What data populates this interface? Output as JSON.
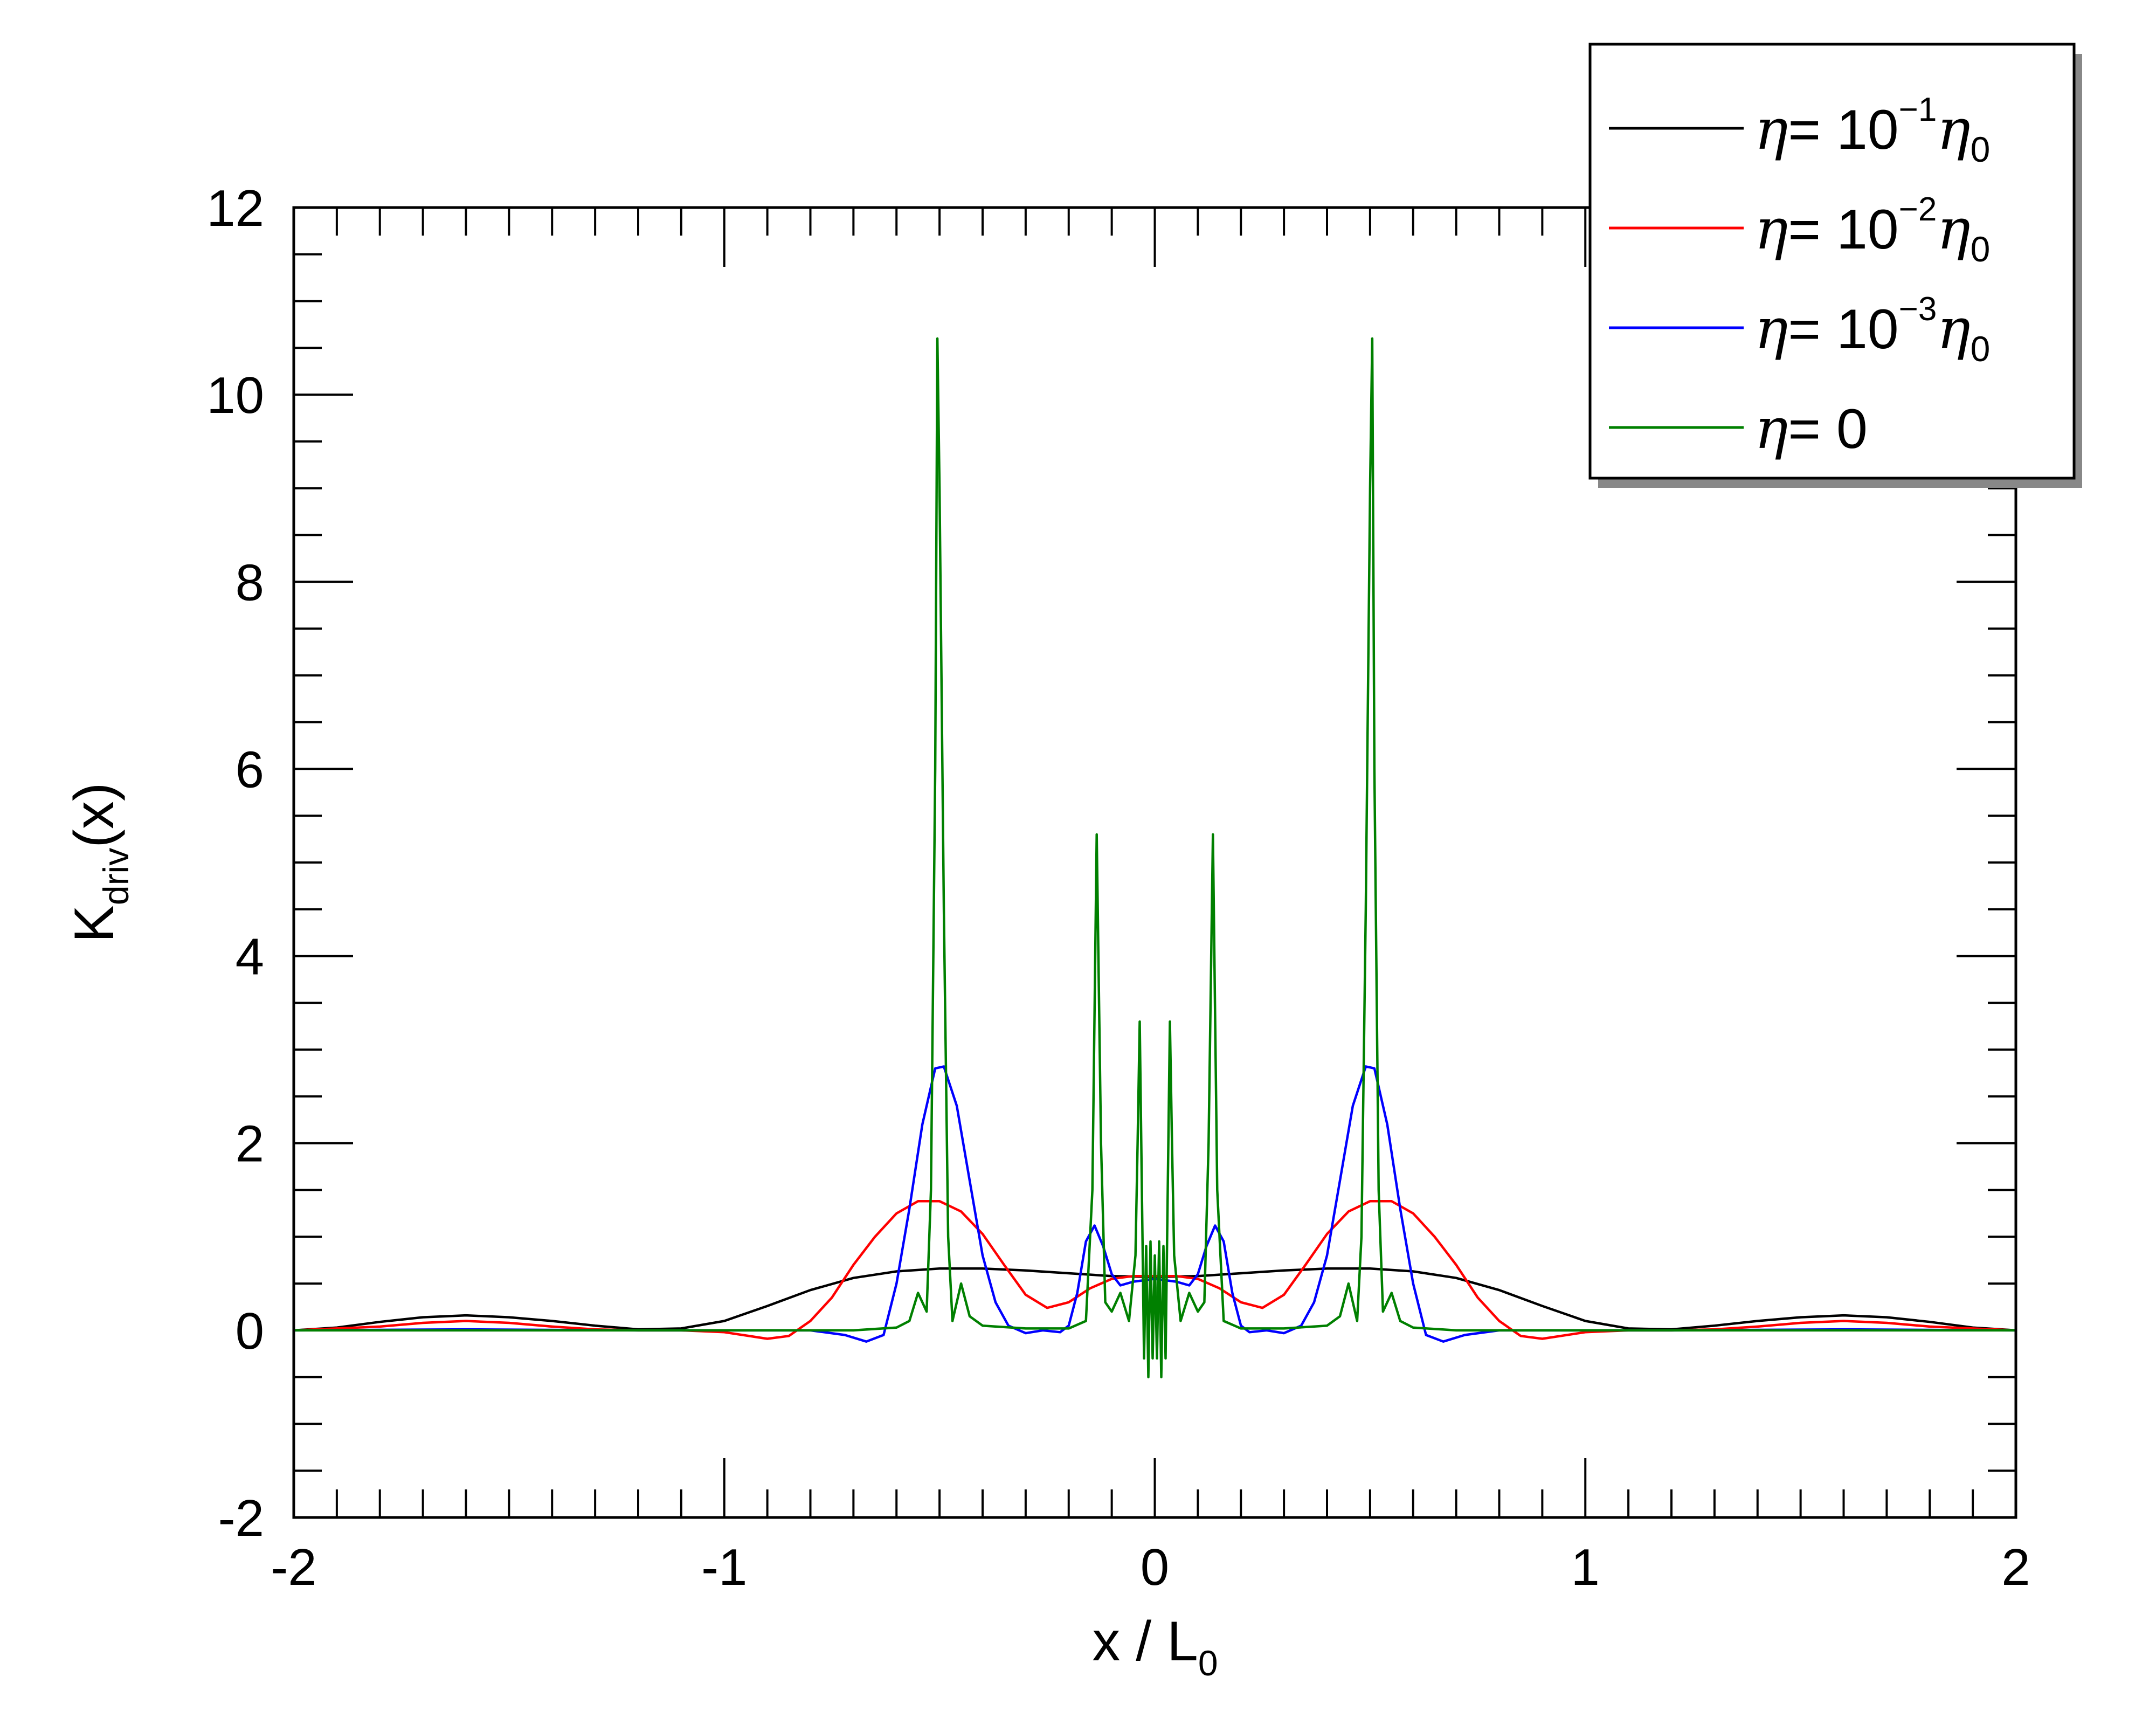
{
  "chart_data": {
    "type": "line",
    "xlabel": {
      "main": "x / L",
      "sub": "0"
    },
    "ylabel": {
      "main": "K",
      "sub": "driv",
      "tail": "(x)"
    },
    "xlim": [
      -2,
      2
    ],
    "ylim": [
      -2,
      12
    ],
    "x_ticks": [
      "-2",
      "-1",
      "0",
      "1",
      "2"
    ],
    "x_tick_values": [
      -2,
      -1,
      0,
      1,
      2
    ],
    "y_ticks": [
      "-2",
      "0",
      "2",
      "4",
      "6",
      "8",
      "10",
      "12"
    ],
    "y_tick_values": [
      -2,
      0,
      2,
      4,
      6,
      8,
      10,
      12
    ],
    "grid": false,
    "legend_position": "top-right",
    "series": [
      {
        "name": "η = 10⁻¹η₀",
        "legend": {
          "eta": "η",
          "eq": "= 10",
          "exp": "−1",
          "tail_eta": "η",
          "tail_sub": "0"
        },
        "color": "#000000",
        "points": [
          [
            -2,
            0
          ],
          [
            -1.9,
            0.03
          ],
          [
            -1.8,
            0.09
          ],
          [
            -1.7,
            0.14
          ],
          [
            -1.6,
            0.16
          ],
          [
            -1.5,
            0.14
          ],
          [
            -1.4,
            0.1
          ],
          [
            -1.3,
            0.05
          ],
          [
            -1.2,
            0.01
          ],
          [
            -1.1,
            0.02
          ],
          [
            -1.0,
            0.1
          ],
          [
            -0.9,
            0.26
          ],
          [
            -0.8,
            0.43
          ],
          [
            -0.7,
            0.56
          ],
          [
            -0.6,
            0.63
          ],
          [
            -0.5,
            0.66
          ],
          [
            -0.4,
            0.66
          ],
          [
            -0.3,
            0.64
          ],
          [
            -0.2,
            0.61
          ],
          [
            -0.1,
            0.58
          ],
          [
            0,
            0.57
          ],
          [
            0.1,
            0.58
          ],
          [
            0.2,
            0.61
          ],
          [
            0.3,
            0.64
          ],
          [
            0.4,
            0.66
          ],
          [
            0.5,
            0.66
          ],
          [
            0.6,
            0.63
          ],
          [
            0.7,
            0.56
          ],
          [
            0.8,
            0.43
          ],
          [
            0.9,
            0.26
          ],
          [
            1.0,
            0.1
          ],
          [
            1.1,
            0.02
          ],
          [
            1.2,
            0.01
          ],
          [
            1.3,
            0.05
          ],
          [
            1.4,
            0.1
          ],
          [
            1.5,
            0.14
          ],
          [
            1.6,
            0.16
          ],
          [
            1.7,
            0.14
          ],
          [
            1.8,
            0.09
          ],
          [
            1.9,
            0.03
          ],
          [
            2,
            0
          ]
        ]
      },
      {
        "name": "η = 10⁻²η₀",
        "legend": {
          "eta": "η",
          "eq": "= 10",
          "exp": "−2",
          "tail_eta": "η",
          "tail_sub": "0"
        },
        "color": "#ff0000",
        "points": [
          [
            -2,
            0
          ],
          [
            -1.8,
            0.04
          ],
          [
            -1.7,
            0.08
          ],
          [
            -1.6,
            0.1
          ],
          [
            -1.5,
            0.08
          ],
          [
            -1.4,
            0.04
          ],
          [
            -1.3,
            0.01
          ],
          [
            -1.2,
            0
          ],
          [
            -1.1,
            0
          ],
          [
            -1.0,
            -0.02
          ],
          [
            -0.9,
            -0.09
          ],
          [
            -0.85,
            -0.06
          ],
          [
            -0.8,
            0.1
          ],
          [
            -0.75,
            0.35
          ],
          [
            -0.7,
            0.7
          ],
          [
            -0.65,
            1.0
          ],
          [
            -0.6,
            1.25
          ],
          [
            -0.55,
            1.38
          ],
          [
            -0.5,
            1.38
          ],
          [
            -0.45,
            1.27
          ],
          [
            -0.4,
            1.03
          ],
          [
            -0.35,
            0.7
          ],
          [
            -0.3,
            0.38
          ],
          [
            -0.25,
            0.24
          ],
          [
            -0.2,
            0.3
          ],
          [
            -0.15,
            0.45
          ],
          [
            -0.1,
            0.55
          ],
          [
            -0.05,
            0.58
          ],
          [
            0,
            0.58
          ],
          [
            0.05,
            0.58
          ],
          [
            0.1,
            0.55
          ],
          [
            0.15,
            0.45
          ],
          [
            0.2,
            0.3
          ],
          [
            0.25,
            0.24
          ],
          [
            0.3,
            0.38
          ],
          [
            0.35,
            0.7
          ],
          [
            0.4,
            1.03
          ],
          [
            0.45,
            1.27
          ],
          [
            0.5,
            1.38
          ],
          [
            0.55,
            1.38
          ],
          [
            0.6,
            1.25
          ],
          [
            0.65,
            1.0
          ],
          [
            0.7,
            0.7
          ],
          [
            0.75,
            0.35
          ],
          [
            0.8,
            0.1
          ],
          [
            0.85,
            -0.06
          ],
          [
            0.9,
            -0.09
          ],
          [
            1.0,
            -0.02
          ],
          [
            1.1,
            0
          ],
          [
            1.2,
            0
          ],
          [
            1.3,
            0.01
          ],
          [
            1.4,
            0.04
          ],
          [
            1.5,
            0.08
          ],
          [
            1.6,
            0.1
          ],
          [
            1.7,
            0.08
          ],
          [
            1.8,
            0.04
          ],
          [
            2,
            0
          ]
        ]
      },
      {
        "name": "η = 10⁻³η₀",
        "legend": {
          "eta": "η",
          "eq": "= 10",
          "exp": "−3",
          "tail_eta": "η",
          "tail_sub": "0"
        },
        "color": "#0000ff",
        "points": [
          [
            -2,
            0
          ],
          [
            -1.6,
            0.01
          ],
          [
            -1.2,
            0
          ],
          [
            -0.8,
            0
          ],
          [
            -0.72,
            -0.05
          ],
          [
            -0.67,
            -0.12
          ],
          [
            -0.63,
            -0.05
          ],
          [
            -0.6,
            0.5
          ],
          [
            -0.57,
            1.3
          ],
          [
            -0.54,
            2.2
          ],
          [
            -0.51,
            2.8
          ],
          [
            -0.49,
            2.82
          ],
          [
            -0.46,
            2.4
          ],
          [
            -0.43,
            1.6
          ],
          [
            -0.4,
            0.8
          ],
          [
            -0.37,
            0.3
          ],
          [
            -0.34,
            0.05
          ],
          [
            -0.3,
            -0.03
          ],
          [
            -0.26,
            0.0
          ],
          [
            -0.22,
            -0.02
          ],
          [
            -0.2,
            0.05
          ],
          [
            -0.18,
            0.4
          ],
          [
            -0.16,
            0.95
          ],
          [
            -0.14,
            1.12
          ],
          [
            -0.12,
            0.9
          ],
          [
            -0.1,
            0.6
          ],
          [
            -0.08,
            0.48
          ],
          [
            -0.05,
            0.52
          ],
          [
            0,
            0.55
          ],
          [
            0.05,
            0.52
          ],
          [
            0.08,
            0.48
          ],
          [
            0.1,
            0.6
          ],
          [
            0.12,
            0.9
          ],
          [
            0.14,
            1.12
          ],
          [
            0.16,
            0.95
          ],
          [
            0.18,
            0.4
          ],
          [
            0.2,
            0.05
          ],
          [
            0.22,
            -0.02
          ],
          [
            0.26,
            0.0
          ],
          [
            0.3,
            -0.03
          ],
          [
            0.34,
            0.05
          ],
          [
            0.37,
            0.3
          ],
          [
            0.4,
            0.8
          ],
          [
            0.43,
            1.6
          ],
          [
            0.46,
            2.4
          ],
          [
            0.49,
            2.82
          ],
          [
            0.51,
            2.8
          ],
          [
            0.54,
            2.2
          ],
          [
            0.57,
            1.3
          ],
          [
            0.6,
            0.5
          ],
          [
            0.63,
            -0.05
          ],
          [
            0.67,
            -0.12
          ],
          [
            0.72,
            -0.05
          ],
          [
            0.8,
            0
          ],
          [
            1.2,
            0
          ],
          [
            1.6,
            0.01
          ],
          [
            2,
            0
          ]
        ]
      },
      {
        "name": "η = 0",
        "legend": {
          "eta": "η",
          "eq": "= 0",
          "exp": "",
          "tail_eta": "",
          "tail_sub": ""
        },
        "color": "#008000",
        "points": [
          [
            -2,
            0
          ],
          [
            -0.7,
            0
          ],
          [
            -0.6,
            0.03
          ],
          [
            -0.57,
            0.1
          ],
          [
            -0.55,
            0.4
          ],
          [
            -0.53,
            0.2
          ],
          [
            -0.52,
            1.5
          ],
          [
            -0.51,
            6
          ],
          [
            -0.505,
            10.6
          ],
          [
            -0.5,
            9.0
          ],
          [
            -0.49,
            4.5
          ],
          [
            -0.48,
            1.0
          ],
          [
            -0.47,
            0.1
          ],
          [
            -0.45,
            0.5
          ],
          [
            -0.43,
            0.15
          ],
          [
            -0.4,
            0.05
          ],
          [
            -0.3,
            0.02
          ],
          [
            -0.2,
            0.02
          ],
          [
            -0.16,
            0.1
          ],
          [
            -0.145,
            1.5
          ],
          [
            -0.135,
            5.3
          ],
          [
            -0.125,
            2.0
          ],
          [
            -0.115,
            0.3
          ],
          [
            -0.1,
            0.2
          ],
          [
            -0.08,
            0.4
          ],
          [
            -0.06,
            0.1
          ],
          [
            -0.045,
            0.8
          ],
          [
            -0.04,
            2.0
          ],
          [
            -0.035,
            3.3
          ],
          [
            -0.03,
            1.5
          ],
          [
            -0.025,
            -0.3
          ],
          [
            -0.02,
            0.9
          ],
          [
            -0.015,
            -0.5
          ],
          [
            -0.01,
            0.95
          ],
          [
            -0.005,
            -0.3
          ],
          [
            0,
            0.8
          ],
          [
            0.005,
            -0.3
          ],
          [
            0.01,
            0.95
          ],
          [
            0.015,
            -0.5
          ],
          [
            0.02,
            0.9
          ],
          [
            0.025,
            -0.3
          ],
          [
            0.03,
            1.5
          ],
          [
            0.035,
            3.3
          ],
          [
            0.04,
            2.0
          ],
          [
            0.045,
            0.8
          ],
          [
            0.06,
            0.1
          ],
          [
            0.08,
            0.4
          ],
          [
            0.1,
            0.2
          ],
          [
            0.115,
            0.3
          ],
          [
            0.125,
            2.0
          ],
          [
            0.135,
            5.3
          ],
          [
            0.145,
            1.5
          ],
          [
            0.16,
            0.1
          ],
          [
            0.2,
            0.02
          ],
          [
            0.3,
            0.02
          ],
          [
            0.4,
            0.05
          ],
          [
            0.43,
            0.15
          ],
          [
            0.45,
            0.5
          ],
          [
            0.47,
            0.1
          ],
          [
            0.48,
            1.0
          ],
          [
            0.49,
            4.5
          ],
          [
            0.5,
            9.0
          ],
          [
            0.505,
            10.6
          ],
          [
            0.51,
            6
          ],
          [
            0.52,
            1.5
          ],
          [
            0.53,
            0.2
          ],
          [
            0.55,
            0.4
          ],
          [
            0.57,
            0.1
          ],
          [
            0.6,
            0.03
          ],
          [
            0.7,
            0
          ],
          [
            2,
            0
          ]
        ]
      }
    ]
  }
}
